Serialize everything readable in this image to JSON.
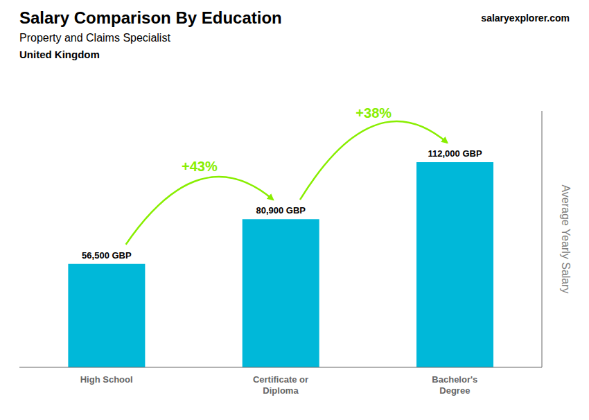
{
  "chart_data": {
    "type": "bar",
    "title": "Salary Comparison By Education",
    "subtitle": "Property and Claims Specialist",
    "annotations": [
      "United Kingdom",
      "salaryexplorer.com"
    ],
    "categories": [
      "High School",
      "Certificate or\nDiploma",
      "Bachelor's\nDegree"
    ],
    "values": [
      56500,
      80900,
      112000
    ],
    "value_labels": [
      "56,500 GBP",
      "80,900 GBP",
      "112,000 GBP"
    ],
    "data_labels": true,
    "arrow_labels": [
      {
        "text": "+43%",
        "color": "#88ee00"
      },
      {
        "text": "+38%",
        "color": "#88ee00"
      }
    ],
    "color": "#00b8d9",
    "y_label": "Average Yearly Salary",
    "ylim": [
      0,
      140000
    ],
    "tick_labels": "x",
    "grid": false
  }
}
